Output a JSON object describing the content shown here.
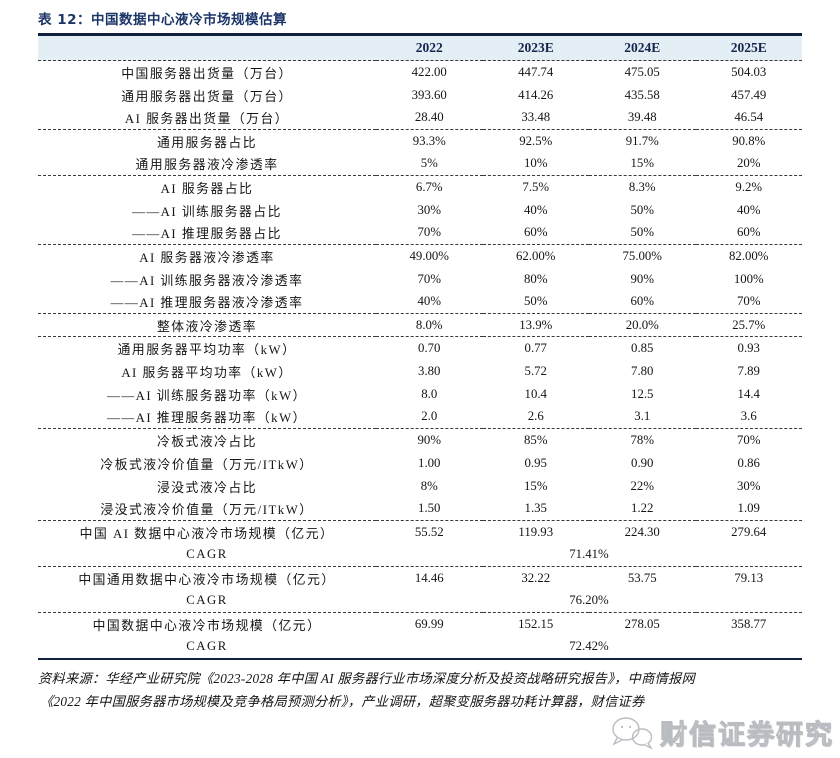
{
  "table": {
    "title": "表 12：中国数据中心液冷市场规模估算",
    "columns": [
      "2022",
      "2023E",
      "2024E",
      "2025E"
    ],
    "rows": [
      {
        "label": "中国服务器出货量（万台）",
        "values": [
          "422.00",
          "447.74",
          "475.05",
          "504.03"
        ],
        "divider": false
      },
      {
        "label": "通用服务器出货量（万台）",
        "values": [
          "393.60",
          "414.26",
          "435.58",
          "457.49"
        ],
        "divider": false
      },
      {
        "label": "AI 服务器出货量（万台）",
        "values": [
          "28.40",
          "33.48",
          "39.48",
          "46.54"
        ],
        "divider": true
      },
      {
        "label": "通用服务器占比",
        "values": [
          "93.3%",
          "92.5%",
          "91.7%",
          "90.8%"
        ],
        "divider": false
      },
      {
        "label": "通用服务器液冷渗透率",
        "values": [
          "5%",
          "10%",
          "15%",
          "20%"
        ],
        "divider": true
      },
      {
        "label": "AI 服务器占比",
        "values": [
          "6.7%",
          "7.5%",
          "8.3%",
          "9.2%"
        ],
        "divider": false
      },
      {
        "label": "——AI 训练服务器占比",
        "values": [
          "30%",
          "40%",
          "50%",
          "40%"
        ],
        "divider": false
      },
      {
        "label": "——AI 推理服务器占比",
        "values": [
          "70%",
          "60%",
          "50%",
          "60%"
        ],
        "divider": true
      },
      {
        "label": "AI 服务器液冷渗透率",
        "values": [
          "49.00%",
          "62.00%",
          "75.00%",
          "82.00%"
        ],
        "divider": false
      },
      {
        "label": "——AI 训练服务器液冷渗透率",
        "values": [
          "70%",
          "80%",
          "90%",
          "100%"
        ],
        "divider": false
      },
      {
        "label": "——AI 推理服务器液冷渗透率",
        "values": [
          "40%",
          "50%",
          "60%",
          "70%"
        ],
        "divider": true
      },
      {
        "label": "整体液冷渗透率",
        "values": [
          "8.0%",
          "13.9%",
          "20.0%",
          "25.7%"
        ],
        "divider": true
      },
      {
        "label": "通用服务器平均功率（kW）",
        "values": [
          "0.70",
          "0.77",
          "0.85",
          "0.93"
        ],
        "divider": false
      },
      {
        "label": "AI 服务器平均功率（kW）",
        "values": [
          "3.80",
          "5.72",
          "7.80",
          "7.89"
        ],
        "divider": false
      },
      {
        "label": "——AI 训练服务器功率（kW）",
        "values": [
          "8.0",
          "10.4",
          "12.5",
          "14.4"
        ],
        "divider": false
      },
      {
        "label": "——AI 推理服务器功率（kW）",
        "values": [
          "2.0",
          "2.6",
          "3.1",
          "3.6"
        ],
        "divider": true
      },
      {
        "label": "冷板式液冷占比",
        "values": [
          "90%",
          "85%",
          "78%",
          "70%"
        ],
        "divider": false
      },
      {
        "label": "冷板式液冷价值量（万元/ITkW）",
        "values": [
          "1.00",
          "0.95",
          "0.90",
          "0.86"
        ],
        "divider": false
      },
      {
        "label": "浸没式液冷占比",
        "values": [
          "8%",
          "15%",
          "22%",
          "30%"
        ],
        "divider": false
      },
      {
        "label": "浸没式液冷价值量（万元/ITkW）",
        "values": [
          "1.50",
          "1.35",
          "1.22",
          "1.09"
        ],
        "divider": true
      },
      {
        "label": "中国 AI 数据中心液冷市场规模（亿元）",
        "values": [
          "55.52",
          "119.93",
          "224.30",
          "279.64"
        ],
        "divider": false
      },
      {
        "label": "CAGR",
        "merged_value": "71.41%",
        "divider": true
      },
      {
        "label": "中国通用数据中心液冷市场规模（亿元）",
        "values": [
          "14.46",
          "32.22",
          "53.75",
          "79.13"
        ],
        "divider": false
      },
      {
        "label": "CAGR",
        "merged_value": "76.20%",
        "divider": true
      },
      {
        "label": "中国数据中心液冷市场规模（亿元）",
        "values": [
          "69.99",
          "152.15",
          "278.05",
          "358.77"
        ],
        "divider": false
      },
      {
        "label": "CAGR",
        "merged_value": "72.42%",
        "divider": false
      }
    ]
  },
  "footer": {
    "line1": "资料来源：华经产业研究院《2023-2028 年中国 AI 服务器行业市场深度分析及投资战略研究报告》，中商情报网",
    "line2": "《2022 年中国服务器市场规模及竞争格局预测分析》，产业调研，超聚变服务器功耗计算器，财信证券"
  },
  "watermark": {
    "text": "财信证券研究"
  },
  "colors": {
    "title_navy": "#1c3568",
    "header_bg": "#e3eef5",
    "rule_dark": "#11203f",
    "watermark_gray": "#b6babf"
  }
}
